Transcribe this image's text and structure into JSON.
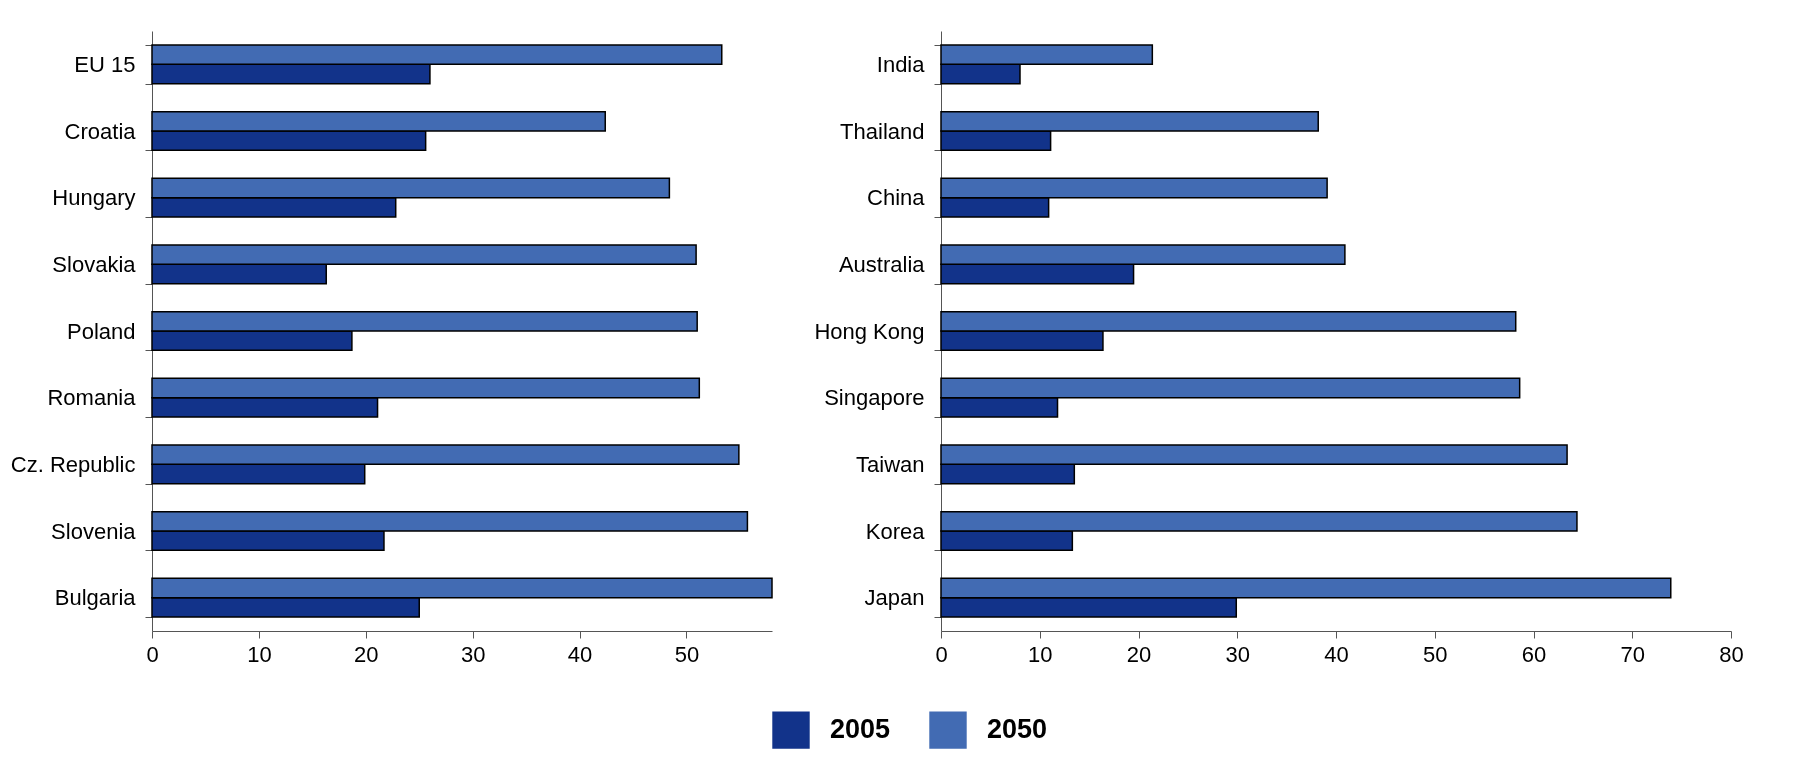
{
  "chart_data": [
    {
      "type": "bar",
      "orientation": "horizontal",
      "categories": [
        "EU 15",
        "Croatia",
        "Hungary",
        "Slovakia",
        "Poland",
        "Romania",
        "Cz. Republic",
        "Slovenia",
        "Bulgaria"
      ],
      "series": [
        {
          "name": "2005",
          "color": "#12338a",
          "values": [
            26.0,
            25.6,
            22.8,
            16.3,
            18.7,
            21.1,
            19.9,
            21.7,
            25.0
          ]
        },
        {
          "name": "2050",
          "color": "#426bb3",
          "values": [
            53.3,
            42.4,
            48.4,
            50.9,
            51.0,
            51.2,
            54.9,
            55.7,
            58
          ]
        }
      ],
      "xlim": [
        0,
        58
      ],
      "xticks": [
        0,
        10,
        20,
        30,
        40,
        50
      ],
      "legend": "bottom",
      "grid": false
    },
    {
      "type": "bar",
      "orientation": "horizontal",
      "categories": [
        "India",
        "Thailand",
        "China",
        "Australia",
        "Hong Kong",
        "Singapore",
        "Taiwan",
        "Korea",
        "Japan"
      ],
      "series": [
        {
          "name": "2005",
          "color": "#12338a",
          "values": [
            8.0,
            11.1,
            10.9,
            19.5,
            16.4,
            11.8,
            13.5,
            13.3,
            29.9
          ]
        },
        {
          "name": "2050",
          "color": "#426bb3",
          "values": [
            21.4,
            38.2,
            39.1,
            40.9,
            58.2,
            58.6,
            63.4,
            64.4,
            73.9
          ]
        }
      ],
      "xlim": [
        0,
        80
      ],
      "xticks": [
        0,
        10,
        20,
        30,
        40,
        50,
        60,
        70,
        80
      ],
      "legend": "bottom",
      "grid": false
    }
  ]
}
